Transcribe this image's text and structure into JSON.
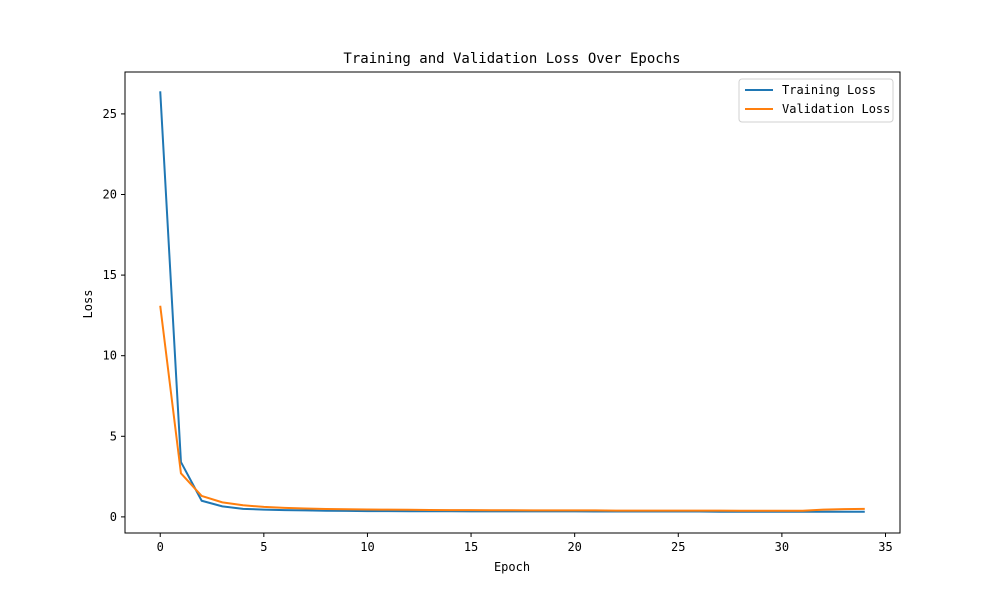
{
  "chart_data": {
    "type": "line",
    "title": "Training and Validation Loss Over Epochs",
    "xlabel": "Epoch",
    "ylabel": "Loss",
    "xlim": [
      -1.7,
      35.7
    ],
    "ylim": [
      -1.0,
      27.6
    ],
    "xticks": [
      0,
      5,
      10,
      15,
      20,
      25,
      30,
      35
    ],
    "yticks": [
      0,
      5,
      10,
      15,
      20,
      25
    ],
    "grid": false,
    "legend_position": "top-right",
    "x": [
      0,
      1,
      2,
      3,
      4,
      5,
      6,
      7,
      8,
      9,
      10,
      11,
      12,
      13,
      14,
      15,
      16,
      17,
      18,
      19,
      20,
      21,
      22,
      23,
      24,
      25,
      26,
      27,
      28,
      29,
      30,
      31,
      32,
      33,
      34
    ],
    "series": [
      {
        "name": "Training Loss",
        "color": "#1f77b4",
        "values": [
          26.4,
          3.4,
          1.0,
          0.65,
          0.5,
          0.45,
          0.42,
          0.4,
          0.38,
          0.37,
          0.36,
          0.36,
          0.35,
          0.35,
          0.35,
          0.34,
          0.34,
          0.34,
          0.34,
          0.34,
          0.34,
          0.33,
          0.33,
          0.33,
          0.33,
          0.33,
          0.33,
          0.32,
          0.32,
          0.32,
          0.32,
          0.32,
          0.32,
          0.32,
          0.32
        ]
      },
      {
        "name": "Validation Loss",
        "color": "#ff7f0e",
        "values": [
          13.1,
          2.7,
          1.3,
          0.9,
          0.72,
          0.62,
          0.56,
          0.52,
          0.49,
          0.47,
          0.46,
          0.45,
          0.44,
          0.43,
          0.42,
          0.42,
          0.41,
          0.41,
          0.4,
          0.4,
          0.4,
          0.4,
          0.39,
          0.39,
          0.39,
          0.39,
          0.39,
          0.39,
          0.38,
          0.38,
          0.38,
          0.38,
          0.45,
          0.48,
          0.5
        ]
      }
    ]
  }
}
